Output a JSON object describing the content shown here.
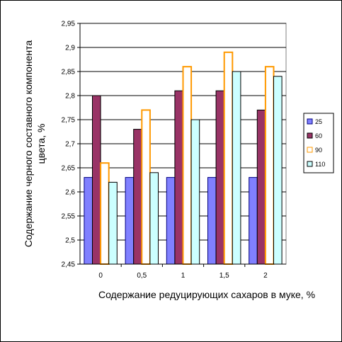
{
  "chart_data": {
    "type": "bar",
    "categories": [
      "0",
      "0,5",
      "1",
      "1,5",
      "2"
    ],
    "series": [
      {
        "name": "25",
        "values": [
          2.63,
          2.63,
          2.63,
          2.63,
          2.63
        ],
        "fill": "#8080ff",
        "stroke": "#000080"
      },
      {
        "name": "60",
        "values": [
          2.8,
          2.73,
          2.81,
          2.81,
          2.77
        ],
        "fill": "#993366",
        "stroke": "#000000"
      },
      {
        "name": "90",
        "values": [
          2.66,
          2.77,
          2.86,
          2.89,
          2.86
        ],
        "fill": "#ffffff",
        "stroke": "#ff9900"
      },
      {
        "name": "110",
        "values": [
          2.62,
          2.64,
          2.75,
          2.85,
          2.84
        ],
        "fill": "#ccffff",
        "stroke": "#000000"
      }
    ],
    "y_ticks": [
      "2,45",
      "2,5",
      "2,55",
      "2,6",
      "2,65",
      "2,7",
      "2,75",
      "2,8",
      "2,85",
      "2,9",
      "2,95"
    ],
    "ylim": [
      2.45,
      2.95
    ],
    "ystep": 0.05,
    "xlabel": "Содержание редуцирующих сахаров в муке, %",
    "ylabel_line1": "Содержание черного составного компонента",
    "ylabel_line2": "цвета, %",
    "grid": true,
    "legend_position": "right"
  }
}
